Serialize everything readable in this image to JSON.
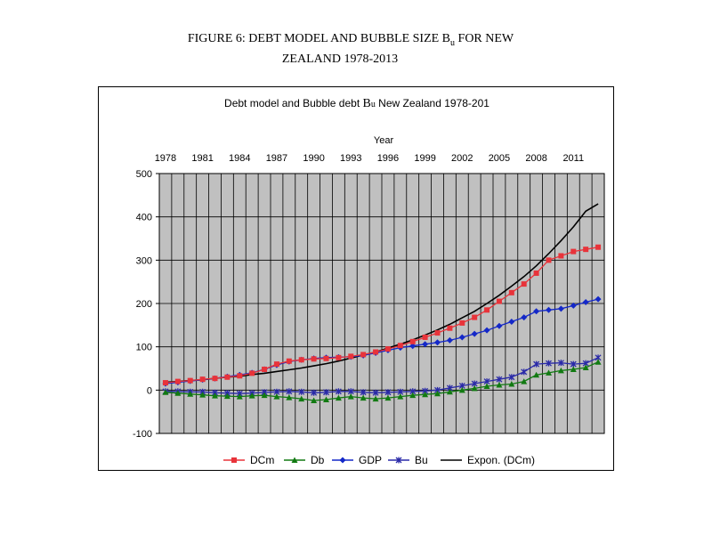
{
  "figure": {
    "title_line1_pre": "FIGURE 6:  DEBT MODEL AND BUBBLE SIZE B",
    "title_line1_sub": "u",
    "title_line1_post": " FOR NEW",
    "title_line2": "ZEALAND 1978-2013"
  },
  "chart_data": {
    "type": "line",
    "title_pre": "Debt model and Bubble debt ",
    "title_b": "B",
    "title_sub": "u",
    "title_post": " New Zealand 1978-201",
    "xlabel": "Year",
    "ylabel": "",
    "xlim": [
      1978,
      2013
    ],
    "ylim": [
      -100,
      500
    ],
    "x_ticks": [
      "1978",
      "1981",
      "1984",
      "1987",
      "1990",
      "1993",
      "1996",
      "1999",
      "2002",
      "2005",
      "2008",
      "2011"
    ],
    "y_ticks": [
      "500",
      "400",
      "300",
      "200",
      "100",
      "0",
      "-100"
    ],
    "grid": true,
    "legend_position": "bottom",
    "x": [
      1978,
      1979,
      1980,
      1981,
      1982,
      1983,
      1984,
      1985,
      1986,
      1987,
      1988,
      1989,
      1990,
      1991,
      1992,
      1993,
      1994,
      1995,
      1996,
      1997,
      1998,
      1999,
      2000,
      2001,
      2002,
      2003,
      2004,
      2005,
      2006,
      2007,
      2008,
      2009,
      2010,
      2011,
      2012,
      2013
    ],
    "series": [
      {
        "name": "DCm",
        "color": "#e8333a",
        "marker": "square",
        "values": [
          17,
          20,
          22,
          25,
          27,
          30,
          33,
          39,
          48,
          60,
          67,
          70,
          72,
          73,
          75,
          78,
          82,
          88,
          95,
          103,
          112,
          122,
          132,
          143,
          155,
          168,
          185,
          205,
          225,
          245,
          270,
          300,
          310,
          320,
          325,
          330
        ]
      },
      {
        "name": "Db",
        "color": "#127a12",
        "marker": "triangle",
        "values": [
          -5,
          -7,
          -9,
          -11,
          -13,
          -14,
          -15,
          -13,
          -12,
          -15,
          -17,
          -20,
          -24,
          -22,
          -18,
          -15,
          -18,
          -20,
          -18,
          -15,
          -12,
          -10,
          -8,
          -4,
          0,
          4,
          9,
          12,
          14,
          20,
          35,
          40,
          45,
          48,
          52,
          65
        ]
      },
      {
        "name": "GDP",
        "color": "#1428c8",
        "marker": "diamond",
        "values": [
          15,
          18,
          21,
          24,
          27,
          31,
          35,
          40,
          48,
          58,
          66,
          70,
          73,
          75,
          76,
          77,
          80,
          86,
          92,
          98,
          102,
          106,
          110,
          115,
          122,
          130,
          138,
          148,
          158,
          168,
          182,
          185,
          188,
          195,
          203,
          210
        ]
      },
      {
        "name": "Bu",
        "color": "#2a2aa8",
        "marker": "star",
        "values": [
          -3,
          -3,
          -4,
          -4,
          -6,
          -7,
          -8,
          -7,
          -5,
          -4,
          -3,
          -4,
          -6,
          -5,
          -3,
          -3,
          -5,
          -6,
          -5,
          -4,
          -3,
          -2,
          0,
          5,
          10,
          15,
          20,
          25,
          30,
          42,
          60,
          62,
          63,
          60,
          62,
          75
        ]
      },
      {
        "name": "Expon. (DCm)",
        "color": "#000000",
        "marker": "none",
        "trendline": true,
        "values": [
          18,
          20,
          22,
          24,
          27,
          30,
          32,
          36,
          39,
          43,
          47,
          51,
          56,
          61,
          67,
          74,
          81,
          88,
          97,
          106,
          116,
          127,
          139,
          152,
          167,
          182,
          200,
          219,
          240,
          262,
          287,
          315,
          345,
          377,
          413,
          430
        ]
      }
    ]
  }
}
